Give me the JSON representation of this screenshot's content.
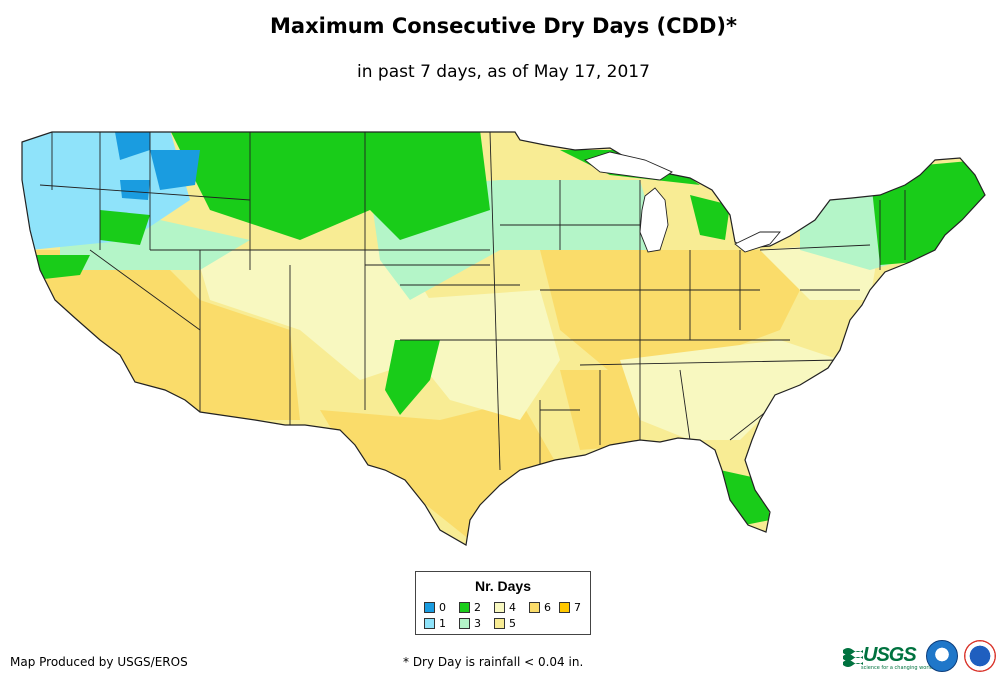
{
  "map": {
    "title": "Maximum Consecutive Dry Days (CDD)*",
    "subtitle": "in past 7 days, as of May 17, 2017",
    "colors": {
      "water": "#ffffff",
      "state_border": "#222222",
      "0": "#1a9ce0",
      "1": "#8fe3fa",
      "2": "#19cc19",
      "3": "#b4f5c8",
      "4": "#f8f8c0",
      "5": "#f8ec94",
      "6": "#fadc6a",
      "7": "#ffc800"
    }
  },
  "legend": {
    "title": "Nr. Days",
    "items": [
      {
        "label": "0",
        "color": "#1a9ce0"
      },
      {
        "label": "1",
        "color": "#8fe3fa"
      },
      {
        "label": "2",
        "color": "#19cc19"
      },
      {
        "label": "3",
        "color": "#b4f5c8"
      },
      {
        "label": "4",
        "color": "#f8f8c0"
      },
      {
        "label": "5",
        "color": "#f8ec94"
      },
      {
        "label": "6",
        "color": "#fadc6a"
      },
      {
        "label": "7",
        "color": "#ffc800"
      }
    ]
  },
  "footer": {
    "producer": "Map Produced by USGS/EROS",
    "footnote": "* Dry Day is rainfall < 0.04 in.",
    "usgs_logo": "USGS",
    "usgs_tagline": "science for a changing world",
    "noaa_logo_icon": "noaa-logo-icon",
    "nws_logo_icon": "nws-logo-icon"
  }
}
